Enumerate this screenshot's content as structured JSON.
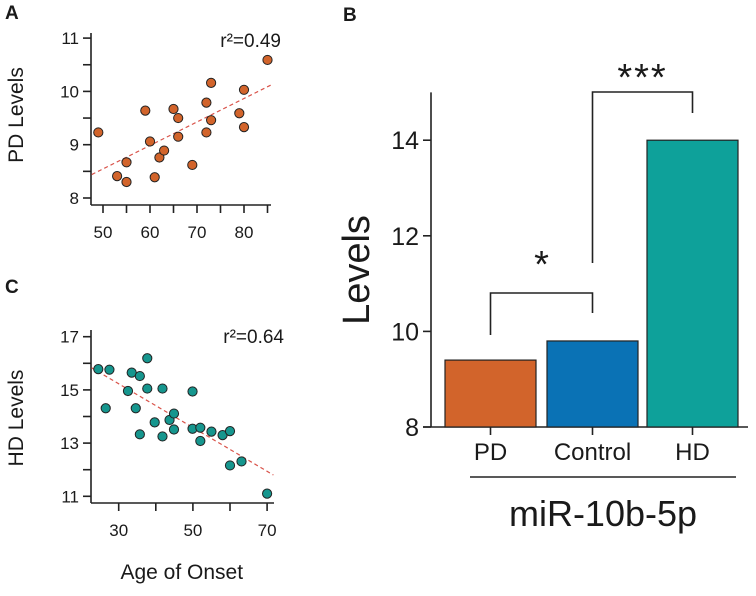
{
  "chart_data": [
    {
      "panel": "A",
      "type": "scatter",
      "ylabel": "PD Levels",
      "xlabel": "",
      "annotation": "r²=0.49",
      "xlim": [
        47.5,
        86
      ],
      "ylim": [
        8,
        11
      ],
      "xticks": [
        50,
        60,
        70,
        80
      ],
      "yticks": [
        8,
        9,
        10,
        11
      ],
      "color": "#d2642b",
      "points": [
        [
          49,
          9.23
        ],
        [
          53,
          8.41
        ],
        [
          55,
          8.67
        ],
        [
          55,
          8.3
        ],
        [
          59,
          9.64
        ],
        [
          60,
          9.06
        ],
        [
          61,
          8.39
        ],
        [
          62,
          8.76
        ],
        [
          63,
          8.89
        ],
        [
          65,
          9.67
        ],
        [
          66,
          9.5
        ],
        [
          66,
          9.15
        ],
        [
          69,
          8.62
        ],
        [
          72,
          9.79
        ],
        [
          72,
          9.23
        ],
        [
          73,
          10.16
        ],
        [
          73,
          9.46
        ],
        [
          79,
          9.59
        ],
        [
          80,
          10.03
        ],
        [
          80,
          9.33
        ],
        [
          85,
          10.59
        ]
      ],
      "fit_line": [
        [
          47.6,
          8.44
        ],
        [
          86.2,
          10.14
        ]
      ]
    },
    {
      "panel": "B",
      "type": "bar",
      "categories": [
        "PD",
        "Control",
        "HD"
      ],
      "values": [
        9.4,
        9.8,
        14.0
      ],
      "colors": [
        "#d2642b",
        "#0a72b5",
        "#0ea19a"
      ],
      "ylabel": "Levels",
      "xlabel": "miR-10b-5p",
      "ylim": [
        8,
        15
      ],
      "yticks": [
        8,
        10,
        12,
        14
      ],
      "significance": [
        {
          "from": "PD",
          "to": "Control",
          "label": "*"
        },
        {
          "from": "Control",
          "to": "HD",
          "label": "***"
        }
      ]
    },
    {
      "panel": "C",
      "type": "scatter",
      "ylabel": "HD Levels",
      "xlabel": "Age of Onset",
      "annotation": "r²=0.64",
      "xlim": [
        23,
        72
      ],
      "ylim": [
        10.8,
        17
      ],
      "xticks": [
        30,
        40,
        50,
        60,
        70
      ],
      "xticklabels": [
        30,
        50,
        70
      ],
      "yticks": [
        11,
        12,
        13,
        14,
        15,
        16,
        17
      ],
      "yticklabels": [
        11,
        13,
        15,
        17
      ],
      "color": "#16968e",
      "points": [
        [
          24.5,
          15.78
        ],
        [
          26.5,
          14.31
        ],
        [
          27.5,
          15.76
        ],
        [
          32.5,
          14.96
        ],
        [
          33.5,
          15.65
        ],
        [
          34.6,
          14.31
        ],
        [
          35.7,
          15.52
        ],
        [
          35.7,
          13.33
        ],
        [
          37.7,
          16.19
        ],
        [
          37.7,
          15.05
        ],
        [
          39.7,
          13.78
        ],
        [
          41.8,
          15.05
        ],
        [
          41.8,
          13.25
        ],
        [
          43.7,
          13.87
        ],
        [
          44.9,
          14.11
        ],
        [
          44.9,
          13.51
        ],
        [
          49.9,
          14.94
        ],
        [
          49.9,
          13.54
        ],
        [
          52,
          13.58
        ],
        [
          52,
          13.08
        ],
        [
          55,
          13.43
        ],
        [
          58,
          13.3
        ],
        [
          60,
          13.45
        ],
        [
          60,
          12.16
        ],
        [
          63.1,
          12.31
        ],
        [
          70,
          11.1
        ]
      ],
      "fit_line": [
        [
          22.7,
          15.83
        ],
        [
          71.7,
          11.8
        ]
      ]
    }
  ],
  "panel_labels": [
    "A",
    "B",
    "C"
  ]
}
